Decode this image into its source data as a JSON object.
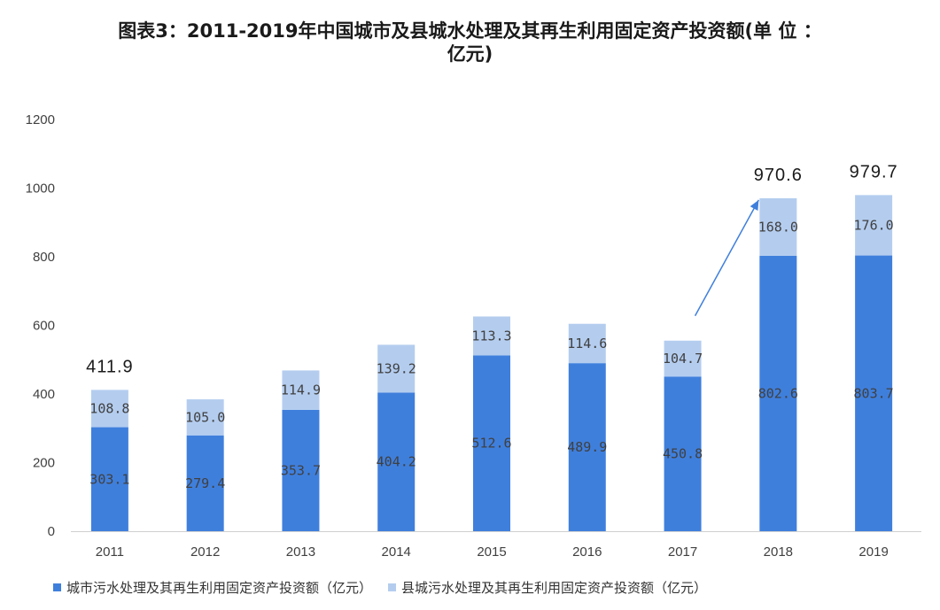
{
  "title": {
    "line1": "图表3：2011-2019年中国城市及县城水处理及其再生利用固定资产投资额(单 位 ：",
    "line2": "亿元)"
  },
  "colors": {
    "city": "#3f7fdc",
    "county": "#b4cdef",
    "arrow": "#3f7fdc"
  },
  "chart_data": {
    "type": "bar",
    "stacked": true,
    "categories": [
      "2011",
      "2012",
      "2013",
      "2014",
      "2015",
      "2016",
      "2017",
      "2018",
      "2019"
    ],
    "series": [
      {
        "name": "城市污水处理及其再生利用固定资产投资额（亿元）",
        "values": [
          303.1,
          279.4,
          353.7,
          404.2,
          512.6,
          489.9,
          450.8,
          802.6,
          803.7
        ]
      },
      {
        "name": "县城污水处理及其再生利用固定资产投资额（亿元）",
        "values": [
          108.8,
          105.0,
          114.9,
          139.2,
          113.3,
          114.6,
          104.7,
          168.0,
          176.0
        ]
      }
    ],
    "totals": [
      {
        "category": "2011",
        "label": "411.9"
      },
      {
        "category": "2018",
        "label": "970.6"
      },
      {
        "category": "2019",
        "label": "979.7"
      }
    ],
    "ylim": [
      0,
      1200
    ],
    "yticks": [
      0,
      200,
      400,
      600,
      800,
      1000,
      1200
    ],
    "grid": false,
    "legend_position": "bottom",
    "annotation": "arrow from 2017 to 2018"
  }
}
